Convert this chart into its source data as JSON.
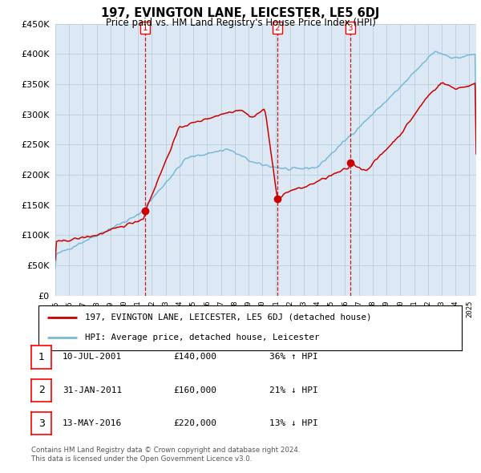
{
  "title": "197, EVINGTON LANE, LEICESTER, LE5 6DJ",
  "subtitle": "Price paid vs. HM Land Registry's House Price Index (HPI)",
  "legend_line1": "197, EVINGTON LANE, LEICESTER, LE5 6DJ (detached house)",
  "legend_line2": "HPI: Average price, detached house, Leicester",
  "transactions": [
    {
      "num": 1,
      "date": "10-JUL-2001",
      "price": 140000,
      "pct": "36%",
      "dir": "↑"
    },
    {
      "num": 2,
      "date": "31-JAN-2011",
      "price": 160000,
      "pct": "21%",
      "dir": "↓"
    },
    {
      "num": 3,
      "date": "13-MAY-2016",
      "price": 220000,
      "pct": "13%",
      "dir": "↓"
    }
  ],
  "transaction_years": [
    2001.52,
    2011.08,
    2016.37
  ],
  "transaction_prices": [
    140000,
    160000,
    220000
  ],
  "footer1": "Contains HM Land Registry data © Crown copyright and database right 2024.",
  "footer2": "This data is licensed under the Open Government Licence v3.0.",
  "hpi_color": "#7ab8d9",
  "price_color": "#cc0000",
  "bg_color": "#dce9f5",
  "grid_color": "#b8cfe0",
  "ylim": [
    0,
    450000
  ],
  "yticks": [
    0,
    50000,
    100000,
    150000,
    200000,
    250000,
    300000,
    350000,
    400000,
    450000
  ],
  "xlim_start": 1995,
  "xlim_end": 2025.5
}
